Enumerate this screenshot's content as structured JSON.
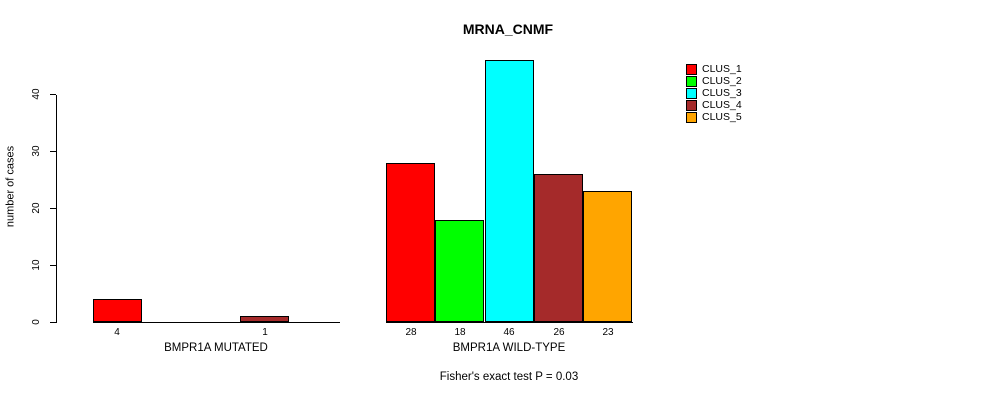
{
  "chart_data": {
    "type": "bar",
    "title": "MRNA_CNMF",
    "ylabel": "number of cases",
    "xlabel": "",
    "yticks": [
      0,
      10,
      20,
      30,
      40
    ],
    "ylim": [
      0,
      46
    ],
    "grid": false,
    "background_color": "#ffffff",
    "axis_color": "#000000",
    "legend": {
      "position": "right",
      "entries": [
        {
          "label": "CLUS_1",
          "color": "#ff0000"
        },
        {
          "label": "CLUS_2",
          "color": "#00ff00"
        },
        {
          "label": "CLUS_3",
          "color": "#00ffff"
        },
        {
          "label": "CLUS_4",
          "color": "#a52a2a"
        },
        {
          "label": "CLUS_5",
          "color": "#ffa500"
        }
      ]
    },
    "series_labels": [
      "CLUS_1",
      "CLUS_2",
      "CLUS_3",
      "CLUS_4",
      "CLUS_5"
    ],
    "groups": [
      {
        "label": "BMPR1A MUTATED",
        "values": [
          4,
          0,
          0,
          1,
          0
        ]
      },
      {
        "label": "BMPR1A WILD-TYPE",
        "values": [
          28,
          18,
          46,
          26,
          23
        ]
      }
    ],
    "annotation": "Fisher's exact test P = 0.03"
  }
}
